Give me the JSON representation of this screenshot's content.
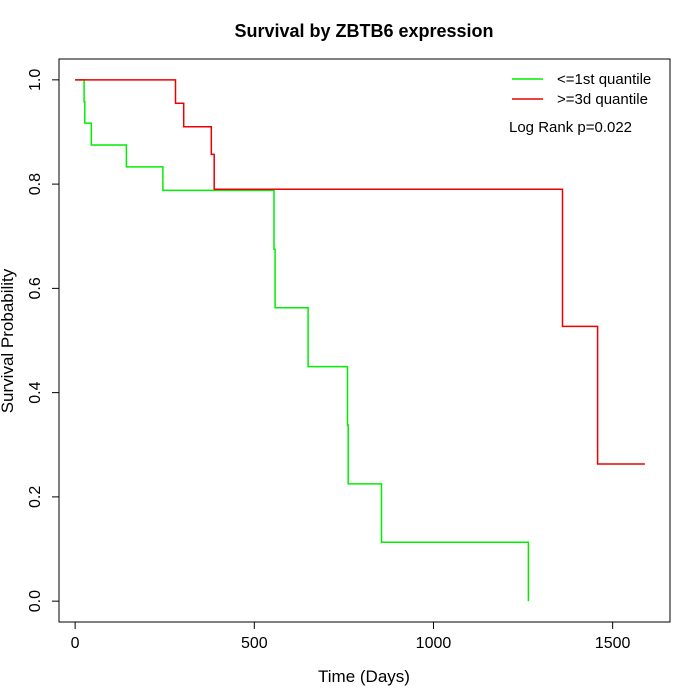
{
  "chart_data": {
    "type": "line",
    "subtype": "kaplan-meier step",
    "title": "Survival by ZBTB6 expression",
    "xlabel": "Time (Days)",
    "ylabel": "Survival Probability",
    "xlim": [
      -45,
      1660
    ],
    "ylim": [
      -0.04,
      1.04
    ],
    "xticks": [
      0,
      500,
      1000,
      1500
    ],
    "yticks": [
      0.0,
      0.2,
      0.4,
      0.6,
      0.8,
      1.0
    ],
    "xtick_labels": [
      "0",
      "500",
      "1000",
      "1500"
    ],
    "ytick_labels": [
      "0.0",
      "0.2",
      "0.4",
      "0.6",
      "0.8",
      "1.0"
    ],
    "grid": false,
    "legend_position": "top-right",
    "annotation": "Log Rank p=0.022",
    "series": [
      {
        "name": "<=1st quantile",
        "color": "#00ee00",
        "steps": [
          [
            0,
            1.0
          ],
          [
            25,
            1.0
          ],
          [
            25,
            0.958
          ],
          [
            27,
            0.958
          ],
          [
            27,
            0.917
          ],
          [
            45,
            0.917
          ],
          [
            45,
            0.875
          ],
          [
            143,
            0.875
          ],
          [
            143,
            0.833
          ],
          [
            245,
            0.833
          ],
          [
            245,
            0.788
          ],
          [
            555,
            0.788
          ],
          [
            555,
            0.675
          ],
          [
            558,
            0.675
          ],
          [
            558,
            0.563
          ],
          [
            650,
            0.563
          ],
          [
            650,
            0.45
          ],
          [
            760,
            0.45
          ],
          [
            760,
            0.338
          ],
          [
            762,
            0.338
          ],
          [
            762,
            0.225
          ],
          [
            855,
            0.225
          ],
          [
            855,
            0.113
          ],
          [
            1265,
            0.113
          ],
          [
            1265,
            0.0
          ]
        ]
      },
      {
        "name": ">=3d quantile",
        "color": "#ee0000",
        "steps": [
          [
            0,
            1.0
          ],
          [
            280,
            1.0
          ],
          [
            280,
            0.955
          ],
          [
            303,
            0.955
          ],
          [
            303,
            0.91
          ],
          [
            380,
            0.91
          ],
          [
            380,
            0.857
          ],
          [
            388,
            0.857
          ],
          [
            388,
            0.79
          ],
          [
            1360,
            0.79
          ],
          [
            1360,
            0.527
          ],
          [
            1458,
            0.527
          ],
          [
            1458,
            0.263
          ],
          [
            1590,
            0.263
          ]
        ]
      }
    ]
  }
}
